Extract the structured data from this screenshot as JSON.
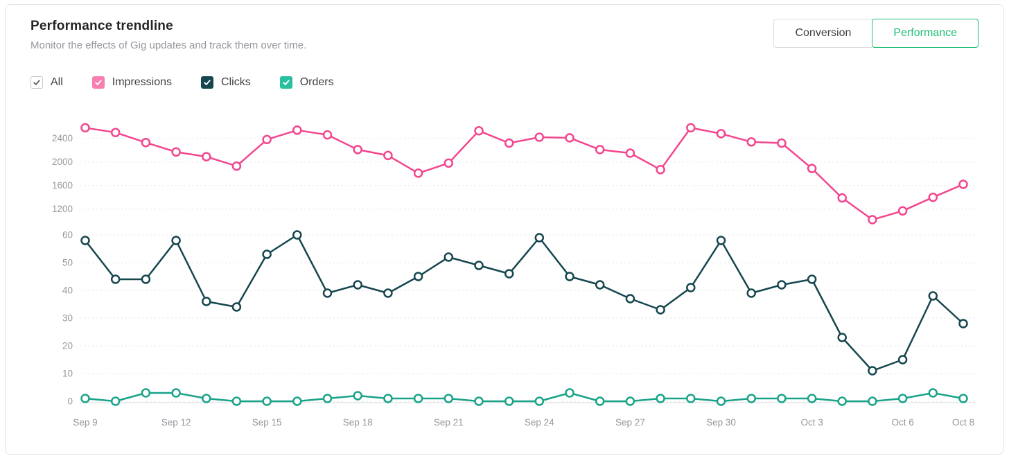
{
  "header": {
    "title": "Performance trendline",
    "subtitle": "Monitor the effects of Gig updates and track them over time."
  },
  "view_toggle": {
    "options": [
      {
        "label": "Conversion",
        "active": false
      },
      {
        "label": "Performance",
        "active": true
      }
    ],
    "active_color": "#1dbf73"
  },
  "filters": [
    {
      "label": "All",
      "checked": true,
      "box_color": "#ffffff",
      "box_border": "#c5c6c9",
      "check_color": "#62646a"
    },
    {
      "label": "Impressions",
      "checked": true,
      "box_color": "#f87fb0",
      "box_border": "",
      "check_color": "#ffffff"
    },
    {
      "label": "Clicks",
      "checked": true,
      "box_color": "#16464e",
      "box_border": "",
      "check_color": "#ffffff"
    },
    {
      "label": "Orders",
      "checked": true,
      "box_color": "#29c0a0",
      "box_border": "",
      "check_color": "#ffffff"
    }
  ],
  "chart_data": {
    "type": "line",
    "title": "Performance trendline",
    "legend_position": "top-checkbox-row",
    "grid": "dashed horizontal",
    "tick_color": "#95979d",
    "x_labels": [
      "Sep 9",
      "Sep 10",
      "Sep 11",
      "Sep 12",
      "Sep 13",
      "Sep 14",
      "Sep 15",
      "Sep 16",
      "Sep 17",
      "Sep 18",
      "Sep 19",
      "Sep 20",
      "Sep 21",
      "Sep 22",
      "Sep 23",
      "Sep 24",
      "Sep 25",
      "Sep 26",
      "Sep 27",
      "Sep 28",
      "Sep 29",
      "Sep 30",
      "Oct 1",
      "Oct 2",
      "Oct 3",
      "Oct 4",
      "Oct 5",
      "Oct 6",
      "Oct 7",
      "Oct 8"
    ],
    "x_tick_indices": [
      0,
      3,
      6,
      9,
      12,
      15,
      18,
      21,
      24,
      27,
      29
    ],
    "y_ticks": {
      "impressions": [
        2400,
        2000,
        1600,
        1200
      ],
      "counts": [
        60,
        50,
        40,
        30,
        20,
        10,
        0
      ]
    },
    "axis_ranges": {
      "impressions": [
        1000,
        2600
      ],
      "counts": [
        0,
        62
      ]
    },
    "series": [
      {
        "name": "Impressions",
        "axis": "impressions",
        "color": "#f2468f",
        "values": [
          2580,
          2500,
          2330,
          2170,
          2090,
          1930,
          2380,
          2540,
          2460,
          2210,
          2110,
          1810,
          1980,
          2530,
          2320,
          2420,
          2410,
          2210,
          2150,
          1870,
          2580,
          2480,
          2340,
          2320,
          1890,
          1390,
          1020,
          1170,
          1400,
          1620
        ]
      },
      {
        "name": "Clicks",
        "axis": "counts",
        "color": "#16464e",
        "values": [
          58,
          44,
          44,
          58,
          36,
          34,
          53,
          60,
          39,
          42,
          39,
          45,
          52,
          49,
          46,
          59,
          45,
          42,
          37,
          33,
          41,
          58,
          39,
          42,
          44,
          23,
          11,
          15,
          38,
          28
        ]
      },
      {
        "name": "Orders",
        "axis": "counts",
        "color": "#19a389",
        "values": [
          1,
          0,
          3,
          3,
          1,
          0,
          0,
          0,
          1,
          2,
          1,
          1,
          1,
          0,
          0,
          0,
          3,
          0,
          0,
          1,
          1,
          0,
          1,
          1,
          1,
          0,
          0,
          1,
          3,
          1
        ]
      }
    ]
  }
}
